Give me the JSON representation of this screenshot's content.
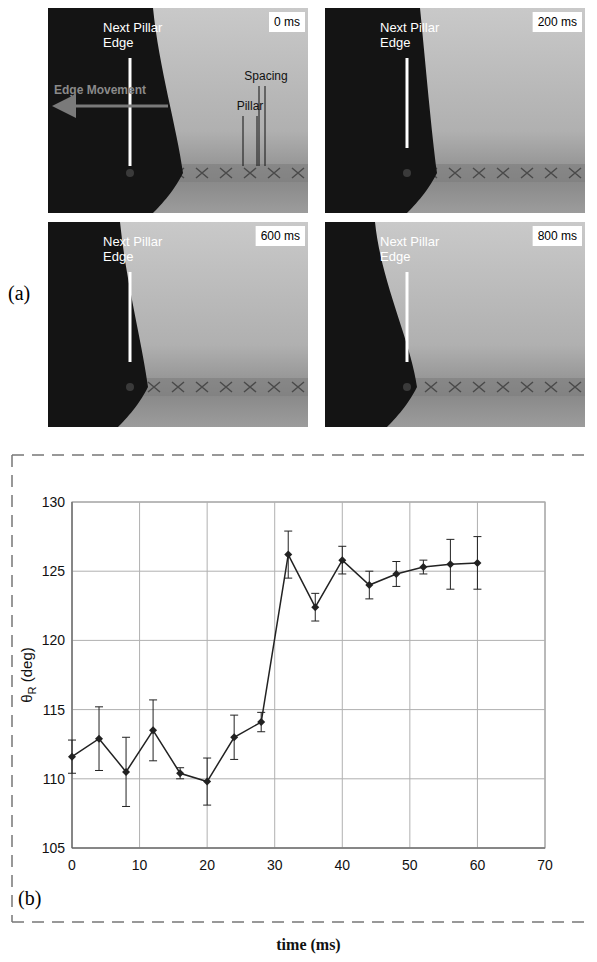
{
  "panel_labels": [
    "(a)",
    "(b)"
  ],
  "panel_a": {
    "frames": [
      {
        "time_label": "0 ms",
        "edge_label": "Next Pillar Edge"
      },
      {
        "time_label": "200 ms",
        "edge_label": "Next Pillar Edge"
      },
      {
        "time_label": "600 ms",
        "edge_label": "Next Pillar Edge"
      },
      {
        "time_label": "800 ms",
        "edge_label": "Next Pillar Edge"
      }
    ],
    "annotations": {
      "movement": "Edge Movement",
      "pillar": "Pillar",
      "spacing": "Spacing"
    }
  },
  "chart_data": {
    "type": "line",
    "marker": "diamond",
    "color": "#222222",
    "x_label": "time (ms)",
    "y_label": "θR (deg)",
    "x": [
      0,
      4,
      8,
      12,
      16,
      20,
      24,
      28,
      32,
      36,
      40,
      44,
      48,
      52,
      56,
      60
    ],
    "values": [
      111.6,
      112.9,
      110.5,
      113.5,
      110.4,
      109.8,
      113.0,
      114.1,
      126.2,
      122.4,
      125.8,
      124.0,
      124.8,
      125.3,
      125.5,
      125.6
    ],
    "errors": [
      1.2,
      2.3,
      2.5,
      2.2,
      0.4,
      1.7,
      1.6,
      0.7,
      1.7,
      1.0,
      1.0,
      1.0,
      0.9,
      0.5,
      1.8,
      1.9
    ],
    "xlim": [
      0,
      70
    ],
    "xticks": [
      0,
      10,
      20,
      30,
      40,
      50,
      60,
      70
    ],
    "ylim": [
      105,
      130
    ],
    "yticks": [
      105,
      110,
      115,
      120,
      125,
      130
    ],
    "grid": true
  }
}
